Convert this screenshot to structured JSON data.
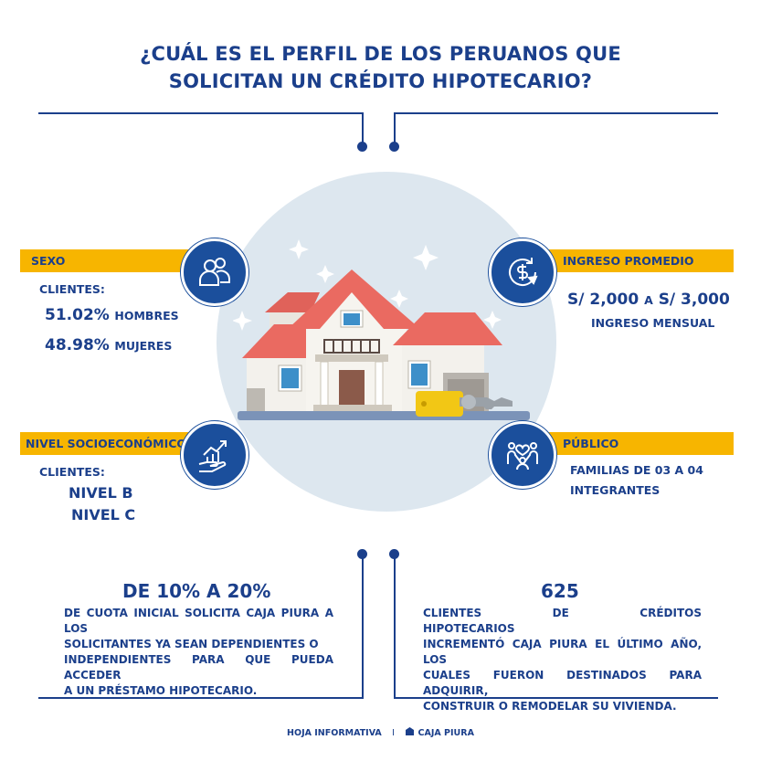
{
  "title": {
    "line1": "¿CUÁL ES EL PERFIL DE LOS PERUANOS QUE",
    "line2": "SOLICITAN UN CRÉDITO HIPOTECARIO?"
  },
  "sexo": {
    "label": "SEXO",
    "sub": "CLIENTES:",
    "men_value": "51.02%",
    "men_label": "HOMBRES",
    "women_value": "48.98%",
    "women_label": "MUJERES",
    "icon": "people-icon"
  },
  "ingreso": {
    "label": "INGRESO PROMEDIO",
    "from": "S/ 2,000",
    "connector": "A",
    "to": "S/ 3,000",
    "sub": "INGRESO MENSUAL",
    "icon": "money-cycle-icon"
  },
  "nivel": {
    "label": "NIVEL SOCIOECONÓMICO",
    "sub": "CLIENTES:",
    "b": "NIVEL B",
    "c": "NIVEL C",
    "icon": "growth-hand-icon"
  },
  "publico": {
    "label": "PÚBLICO",
    "line1": "FAMILIAS DE 03 A 04",
    "line2": "INTEGRANTES",
    "icon": "family-icon"
  },
  "cuota": {
    "headline": "DE 10% A 20%",
    "l1": "DE CUOTA INICIAL SOLICITA CAJA PIURA A LOS",
    "l2": "SOLICITANTES YA SEAN DEPENDIENTES O",
    "l3": "INDEPENDIENTES PARA QUE PUEDA ACCEDER",
    "l4": "A UN PRÉSTAMO HIPOTECARIO."
  },
  "clientes": {
    "headline": "625",
    "l1": "CLIENTES DE CRÉDITOS HIPOTECARIOS",
    "l2": "INCREMENTÓ CAJA PIURA EL ÚLTIMO AÑO, LOS",
    "l3": "CUALES FUERON DESTINADOS PARA ADQUIRIR,",
    "l4": "CONSTRUIR O REMODELAR SU VIVIENDA."
  },
  "footer": {
    "left": "HOJA INFORMATIVA",
    "sep": "I",
    "brand": "CAJA PIURA"
  },
  "colors": {
    "navy": "#1b3f8b",
    "yellow": "#f7b500",
    "circle": "#dde7ef",
    "roof": "#ea6a61"
  }
}
